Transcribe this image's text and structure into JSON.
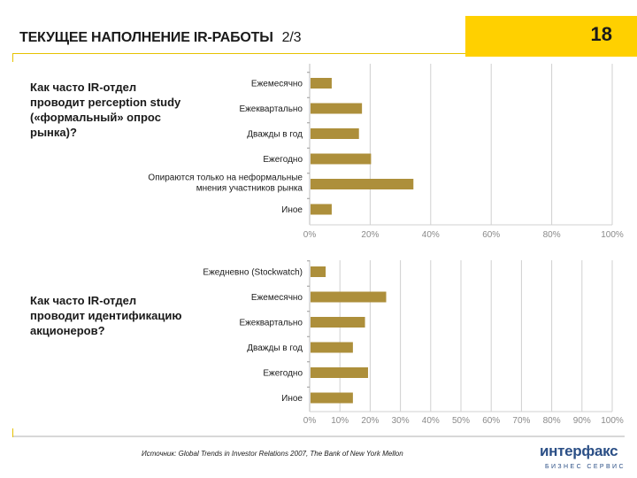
{
  "header": {
    "title": "ТЕКУЩЕЕ НАПОЛНЕНИЕ IR-РАБОТЫ",
    "subtitle": "2/3",
    "page_number": "18"
  },
  "questions": [
    "Как часто IR-отдел проводит perception study («формальный» опрос рынка)?",
    "Как часто IR-отдел проводит идентификацию акционеров?"
  ],
  "source": "Источник: Global Trends in Investor Relations 2007, The Bank of New York Mellon",
  "logo": {
    "name": "интерфакс",
    "tagline": "БИЗНЕС СЕРВИС"
  },
  "colors": {
    "bar": "#ad8f3b",
    "accent": "#ffd000",
    "grid": "#d0d0d0"
  },
  "chart_data": [
    {
      "type": "bar",
      "orientation": "horizontal",
      "categories": [
        "Ежемесячно",
        "Ежеквартально",
        "Дважды в год",
        "Ежегодно",
        "Опираются только на неформальные мнения участников рынка",
        "Иное"
      ],
      "category_lines": [
        [
          "Ежемесячно"
        ],
        [
          "Ежеквартально"
        ],
        [
          "Дважды в год"
        ],
        [
          "Ежегодно"
        ],
        [
          "Опираются только на неформальные",
          "мнения участников рынка"
        ],
        [
          "Иное"
        ]
      ],
      "values": [
        7,
        17,
        16,
        20,
        34,
        7
      ],
      "xlim": [
        0,
        100
      ],
      "xticks": [
        "0%",
        "20%",
        "40%",
        "60%",
        "80%",
        "100%"
      ],
      "grid": true
    },
    {
      "type": "bar",
      "orientation": "horizontal",
      "categories": [
        "Ежедневно (Stockwatch)",
        "Ежемесячно",
        "Ежеквартально",
        "Дважды в год",
        "Ежегодно",
        "Иное"
      ],
      "category_lines": [
        [
          "Ежедневно (Stockwatch)"
        ],
        [
          "Ежемесячно"
        ],
        [
          "Ежеквартально"
        ],
        [
          "Дважды в год"
        ],
        [
          "Ежегодно"
        ],
        [
          "Иное"
        ]
      ],
      "values": [
        5,
        25,
        18,
        14,
        19,
        14
      ],
      "xlim": [
        0,
        100
      ],
      "xticks": [
        "0%",
        "10%",
        "20%",
        "30%",
        "40%",
        "50%",
        "60%",
        "70%",
        "80%",
        "90%",
        "100%"
      ],
      "grid": true
    }
  ]
}
